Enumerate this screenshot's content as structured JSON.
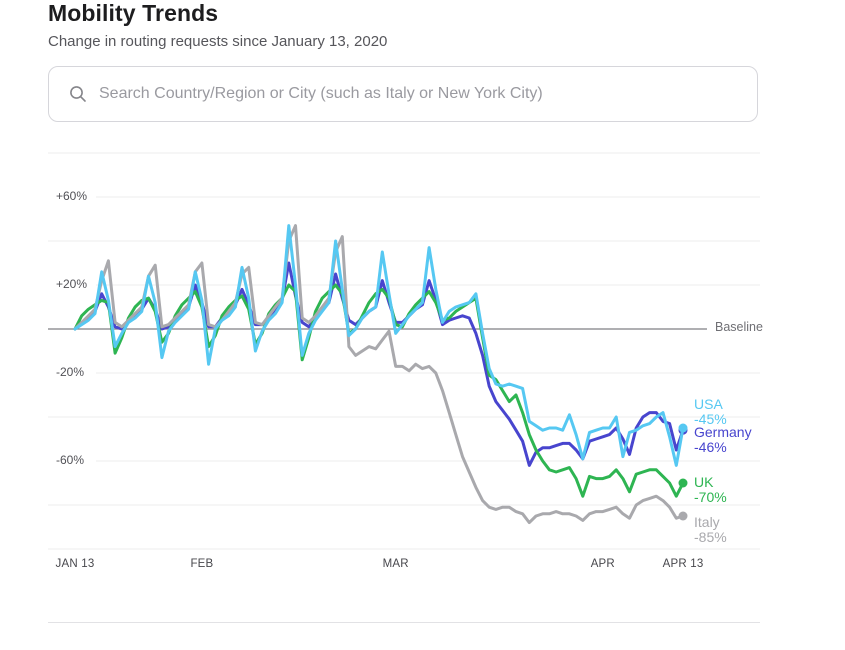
{
  "header": {
    "title": "Mobility Trends",
    "subtitle": "Change in routing requests since January 13, 2020"
  },
  "search": {
    "icon": "magnifier-icon",
    "placeholder": "Search Country/Region or City (such as Italy or New York City)",
    "value": ""
  },
  "chart_data": {
    "type": "line",
    "title": "Mobility Trends",
    "subtitle": "Change in routing requests since January 13, 2020",
    "x_axis": {
      "unit": "days since 2020-01-13",
      "n_points": 92,
      "tick_labels": [
        "JAN 13",
        "FEB",
        "MAR",
        "APR",
        "APR 13"
      ],
      "tick_days": [
        0,
        19,
        48,
        79,
        91
      ]
    },
    "y_axis": {
      "ylim": [
        -100,
        80
      ],
      "gridline_step": 20,
      "tick_labels": [
        "+60%",
        "+20%",
        "-20%",
        "-60%"
      ],
      "tick_values": [
        60,
        20,
        -20,
        -60
      ],
      "grid_color": "#ececee"
    },
    "baseline": {
      "value": 0,
      "label": "Baseline",
      "color": "#7f7f84"
    },
    "legend_position": "right-of-line-ends",
    "series": [
      {
        "name": "USA",
        "end_label": "USA",
        "end_value_label": "-45%",
        "color": "#56c8f2",
        "values": [
          0,
          2,
          4,
          7,
          26,
          13,
          -8,
          -2,
          3,
          5,
          8,
          24,
          12,
          -13,
          -1,
          3,
          6,
          9,
          26,
          13,
          -16,
          0,
          4,
          6,
          10,
          28,
          14,
          -10,
          -1,
          4,
          7,
          12,
          47,
          20,
          -12,
          -2,
          4,
          8,
          12,
          40,
          18,
          -3,
          0,
          5,
          8,
          10,
          35,
          16,
          -2,
          2,
          6,
          9,
          12,
          37,
          18,
          3,
          8,
          10,
          11,
          12,
          16,
          -2,
          -18,
          -25,
          -26,
          -25,
          -26,
          -27,
          -42,
          -44,
          -46,
          -45,
          -45,
          -46,
          -39,
          -48,
          -59,
          -47,
          -46,
          -45,
          -45,
          -40,
          -58,
          -47,
          -46,
          -44,
          -43,
          -40,
          -38,
          -49,
          -62,
          -45
        ]
      },
      {
        "name": "Germany",
        "end_label": "Germany",
        "end_value_label": "-46%",
        "color": "#4845ce",
        "values": [
          0,
          3,
          5,
          8,
          16,
          10,
          1,
          0,
          4,
          6,
          9,
          14,
          9,
          0,
          1,
          4,
          7,
          10,
          20,
          12,
          1,
          1,
          5,
          8,
          11,
          18,
          11,
          2,
          2,
          5,
          9,
          13,
          30,
          15,
          3,
          1,
          5,
          9,
          12,
          25,
          14,
          4,
          2,
          5,
          8,
          10,
          22,
          12,
          3,
          3,
          6,
          9,
          11,
          22,
          13,
          2,
          4,
          5,
          6,
          5,
          -2,
          -12,
          -26,
          -33,
          -37,
          -41,
          -46,
          -51,
          -62,
          -56,
          -54,
          -54,
          -53,
          -52,
          -52,
          -55,
          -59,
          -51,
          -50,
          -49,
          -48,
          -45,
          -50,
          -57,
          -45,
          -40,
          -38,
          -38,
          -42,
          -43,
          -55,
          -46
        ]
      },
      {
        "name": "UK",
        "end_label": "UK",
        "end_value_label": "-70%",
        "color": "#2eb552",
        "values": [
          0,
          6,
          9,
          11,
          13,
          12,
          -11,
          -4,
          5,
          10,
          13,
          14,
          8,
          -6,
          -2,
          6,
          11,
          14,
          17,
          10,
          -8,
          -3,
          6,
          10,
          13,
          15,
          9,
          -7,
          -2,
          7,
          11,
          14,
          20,
          17,
          -14,
          -4,
          8,
          14,
          17,
          20,
          16,
          -2,
          0,
          6,
          12,
          16,
          18,
          14,
          2,
          1,
          7,
          11,
          14,
          17,
          12,
          4,
          5,
          8,
          10,
          12,
          14,
          -4,
          -21,
          -23,
          -28,
          -33,
          -30,
          -38,
          -48,
          -55,
          -60,
          -64,
          -65,
          -64,
          -63,
          -68,
          -76,
          -67,
          -68,
          -68,
          -67,
          -64,
          -68,
          -74,
          -66,
          -65,
          -64,
          -64,
          -67,
          -70,
          -76,
          -70
        ]
      },
      {
        "name": "Italy",
        "end_label": "Italy",
        "end_value_label": "-85%",
        "color": "#a9a9ad",
        "values": [
          0,
          3,
          6,
          9,
          22,
          31,
          3,
          1,
          4,
          7,
          10,
          24,
          29,
          1,
          2,
          5,
          8,
          11,
          26,
          30,
          2,
          1,
          4,
          8,
          12,
          25,
          28,
          3,
          2,
          6,
          10,
          14,
          40,
          47,
          5,
          3,
          6,
          10,
          14,
          35,
          42,
          -8,
          -12,
          -10,
          -8,
          -9,
          -5,
          -1,
          -17,
          -17,
          -19,
          -16,
          -18,
          -17,
          -20,
          -28,
          -38,
          -48,
          -58,
          -65,
          -72,
          -78,
          -81,
          -82,
          -81,
          -81,
          -83,
          -84,
          -88,
          -85,
          -84,
          -84,
          -83,
          -84,
          -84,
          -85,
          -87,
          -84,
          -83,
          -83,
          -82,
          -81,
          -84,
          -86,
          -80,
          -78,
          -77,
          -76,
          -78,
          -81,
          -86,
          -85
        ]
      }
    ]
  }
}
